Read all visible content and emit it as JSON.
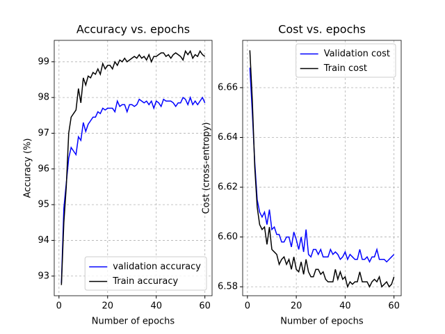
{
  "chart_data": [
    {
      "type": "line",
      "title": "Accuracy vs. epochs",
      "xlabel": "Number of epochs",
      "ylabel": "Accuracy (%)",
      "x": [
        1,
        2,
        3,
        4,
        5,
        6,
        7,
        8,
        9,
        10,
        11,
        12,
        13,
        14,
        15,
        16,
        17,
        18,
        19,
        20,
        21,
        22,
        23,
        24,
        25,
        26,
        27,
        28,
        29,
        30,
        31,
        32,
        33,
        34,
        35,
        36,
        37,
        38,
        39,
        40,
        41,
        42,
        43,
        44,
        45,
        46,
        47,
        48,
        49,
        50,
        51,
        52,
        53,
        54,
        55,
        56,
        57,
        58,
        59,
        60
      ],
      "series": [
        {
          "name": "validation accuracy",
          "color": "#0000ff",
          "values": [
            92.8,
            94.9,
            95.6,
            96.3,
            96.6,
            96.5,
            96.4,
            96.9,
            96.8,
            97.3,
            97.05,
            97.25,
            97.35,
            97.45,
            97.45,
            97.6,
            97.55,
            97.7,
            97.65,
            97.7,
            97.7,
            97.7,
            97.6,
            97.9,
            97.75,
            97.8,
            97.8,
            97.6,
            97.8,
            97.8,
            97.75,
            97.8,
            97.95,
            97.9,
            97.85,
            97.9,
            97.8,
            97.9,
            97.7,
            97.9,
            97.85,
            97.75,
            97.95,
            97.9,
            97.9,
            97.9,
            97.85,
            97.75,
            97.85,
            97.85,
            98.0,
            97.95,
            97.8,
            98.0,
            97.8,
            97.9,
            97.8,
            97.9,
            98.0,
            97.85
          ]
        },
        {
          "name": "Train accuracy",
          "color": "#000000",
          "values": [
            92.75,
            94.5,
            95.5,
            97.0,
            97.45,
            97.55,
            97.65,
            98.25,
            97.85,
            98.55,
            98.35,
            98.6,
            98.55,
            98.7,
            98.65,
            98.8,
            98.65,
            98.95,
            98.8,
            98.9,
            98.9,
            98.8,
            99.0,
            98.9,
            99.05,
            99.0,
            99.1,
            99.0,
            99.05,
            99.1,
            99.15,
            99.1,
            99.2,
            99.1,
            99.15,
            99.05,
            99.2,
            99.0,
            99.15,
            99.15,
            99.2,
            99.25,
            99.25,
            99.15,
            99.2,
            99.1,
            99.2,
            99.25,
            99.2,
            99.15,
            99.05,
            99.3,
            99.2,
            99.3,
            99.1,
            99.2,
            99.15,
            99.3,
            99.2,
            99.15
          ]
        }
      ],
      "xlim": [
        -1.95,
        62.95
      ],
      "xticks": [
        0,
        20,
        40,
        60
      ],
      "ylim": [
        92.45,
        99.6
      ],
      "yticks": [
        93,
        94,
        95,
        96,
        97,
        98,
        99
      ],
      "grid": true,
      "legend": "lower right"
    },
    {
      "type": "line",
      "title": "Cost vs. epochs",
      "xlabel": "Number of epochs",
      "ylabel": "Cost (cross-entropy)",
      "x": [
        1,
        2,
        3,
        4,
        5,
        6,
        7,
        8,
        9,
        10,
        11,
        12,
        13,
        14,
        15,
        16,
        17,
        18,
        19,
        20,
        21,
        22,
        23,
        24,
        25,
        26,
        27,
        28,
        29,
        30,
        31,
        32,
        33,
        34,
        35,
        36,
        37,
        38,
        39,
        40,
        41,
        42,
        43,
        44,
        45,
        46,
        47,
        48,
        49,
        50,
        51,
        52,
        53,
        54,
        55,
        56,
        57,
        58,
        59,
        60
      ],
      "series": [
        {
          "name": "Validation cost",
          "color": "#0000ff",
          "values": [
            6.668,
            6.65,
            6.63,
            6.615,
            6.61,
            6.608,
            6.61,
            6.605,
            6.611,
            6.603,
            6.604,
            6.601,
            6.601,
            6.598,
            6.598,
            6.6,
            6.6,
            6.596,
            6.602,
            6.599,
            6.595,
            6.6,
            6.594,
            6.603,
            6.593,
            6.592,
            6.595,
            6.595,
            6.593,
            6.595,
            6.592,
            6.592,
            6.592,
            6.595,
            6.593,
            6.594,
            6.593,
            6.591,
            6.592,
            6.594,
            6.591,
            6.593,
            6.592,
            6.591,
            6.591,
            6.595,
            6.591,
            6.591,
            6.592,
            6.59,
            6.592,
            6.592,
            6.595,
            6.591,
            6.591,
            6.591,
            6.59,
            6.591,
            6.592,
            6.593
          ]
        },
        {
          "name": "Train cost",
          "color": "#000000",
          "values": [
            6.675,
            6.655,
            6.628,
            6.612,
            6.605,
            6.603,
            6.604,
            6.597,
            6.604,
            6.595,
            6.594,
            6.593,
            6.589,
            6.591,
            6.592,
            6.589,
            6.591,
            6.587,
            6.592,
            6.587,
            6.586,
            6.59,
            6.585,
            6.591,
            6.586,
            6.584,
            6.584,
            6.587,
            6.587,
            6.585,
            6.586,
            6.583,
            6.582,
            6.582,
            6.582,
            6.587,
            6.583,
            6.586,
            6.583,
            6.584,
            6.58,
            6.582,
            6.581,
            6.582,
            6.582,
            6.586,
            6.582,
            6.582,
            6.582,
            6.58,
            6.582,
            6.583,
            6.582,
            6.584,
            6.58,
            6.581,
            6.582,
            6.58,
            6.581,
            6.584
          ]
        }
      ],
      "xlim": [
        -1.95,
        62.95
      ],
      "xticks": [
        0,
        20,
        40,
        60
      ],
      "ylim": [
        6.5764,
        6.679
      ],
      "yticks": [
        6.58,
        {
          "value": 6.6,
          "label": "6.60"
        },
        6.62,
        6.64,
        6.66
      ],
      "grid": true,
      "legend": "upper right"
    }
  ]
}
